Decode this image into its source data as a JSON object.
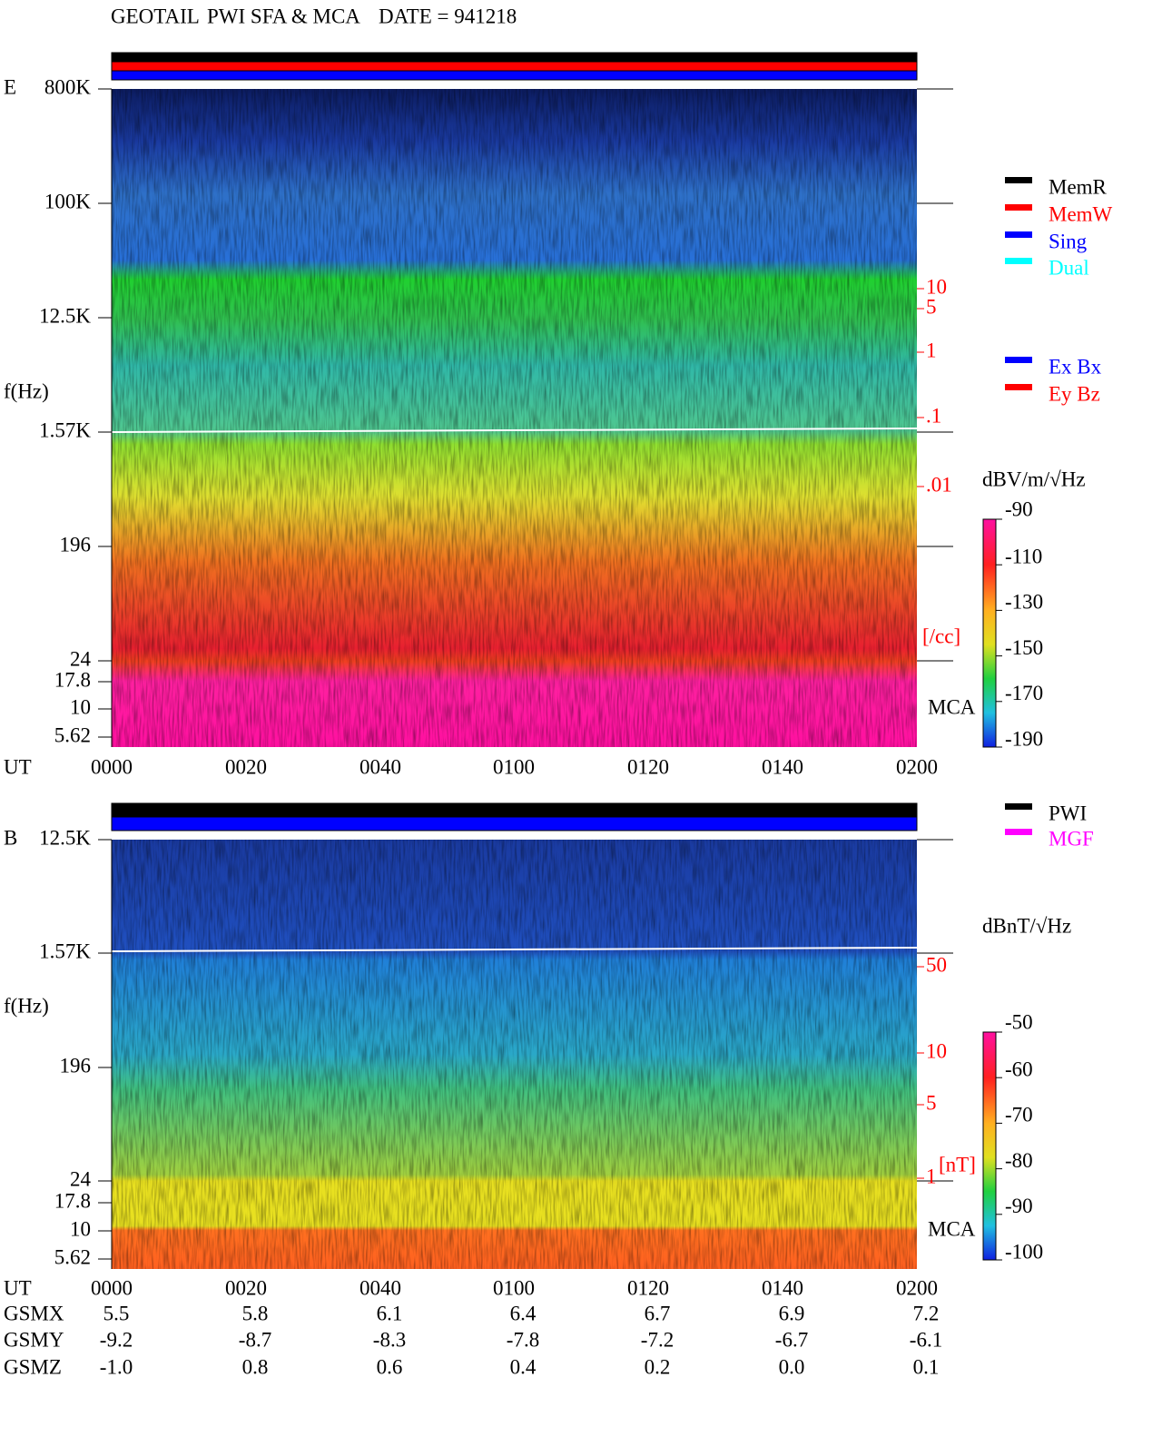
{
  "title": {
    "mission": "GEOTAIL",
    "instrument": "PWI SFA & MCA",
    "date": "DATE = 941218"
  },
  "panels": [
    {
      "label": "E",
      "freq_label": "f(Hz)",
      "freq_ticks": [
        "800K",
        "100K",
        "12.5K",
        "1.57K",
        "196",
        "24",
        "17.8",
        "10",
        "5.62"
      ],
      "mca_label": "MCA",
      "time_label": "UT",
      "time_ticks": [
        "0000",
        "0020",
        "0040",
        "0100",
        "0120",
        "0140",
        "0200"
      ],
      "density_ticks": [
        "10",
        "5",
        "1",
        ".1",
        ".01"
      ],
      "density_unit": "[/cc]",
      "colorbar_unit": "dBV/m/√Hz",
      "colorbar_ticks": [
        "-90",
        "-110",
        "-130",
        "-150",
        "-170",
        "-190"
      ],
      "legend": [
        {
          "name": "MemR",
          "color": "#000000"
        },
        {
          "name": "MemW",
          "color": "#ff0000"
        },
        {
          "name": "Sing",
          "color": "#0000ff"
        },
        {
          "name": "Dual",
          "color": "#00ffff"
        }
      ],
      "legend2": [
        {
          "name": "Ex Bx",
          "color": "#0000ff"
        },
        {
          "name": "Ey Bz",
          "color": "#ff0000"
        }
      ]
    },
    {
      "label": "B",
      "freq_label": "f(Hz)",
      "freq_ticks": [
        "12.5K",
        "1.57K",
        "196",
        "24",
        "17.8",
        "10",
        "5.62"
      ],
      "mca_label": "MCA",
      "time_label": "UT",
      "time_ticks": [
        "0000",
        "0020",
        "0040",
        "0100",
        "0120",
        "0140",
        "0200"
      ],
      "density_ticks": [
        "50",
        "10",
        "5",
        "1"
      ],
      "density_unit": "[nT]",
      "colorbar_unit": "dBnT/√Hz",
      "colorbar_ticks": [
        "-50",
        "-60",
        "-70",
        "-80",
        "-90",
        "-100"
      ],
      "legend": [
        {
          "name": "PWI",
          "color": "#000000"
        },
        {
          "name": "MGF",
          "color": "#ff00ff"
        }
      ]
    }
  ],
  "orbit": {
    "rows": [
      {
        "label": "GSMX",
        "values": [
          "5.5",
          "5.8",
          "6.1",
          "6.4",
          "6.7",
          "6.9",
          "7.2"
        ]
      },
      {
        "label": "GSMY",
        "values": [
          "-9.2",
          "-8.7",
          "-8.3",
          "-7.8",
          "-7.2",
          "-6.7",
          "-6.1"
        ]
      },
      {
        "label": "GSMZ",
        "values": [
          "-1.0",
          "0.8",
          "0.6",
          "0.4",
          "0.2",
          "0.0",
          "0.1"
        ]
      }
    ]
  }
}
